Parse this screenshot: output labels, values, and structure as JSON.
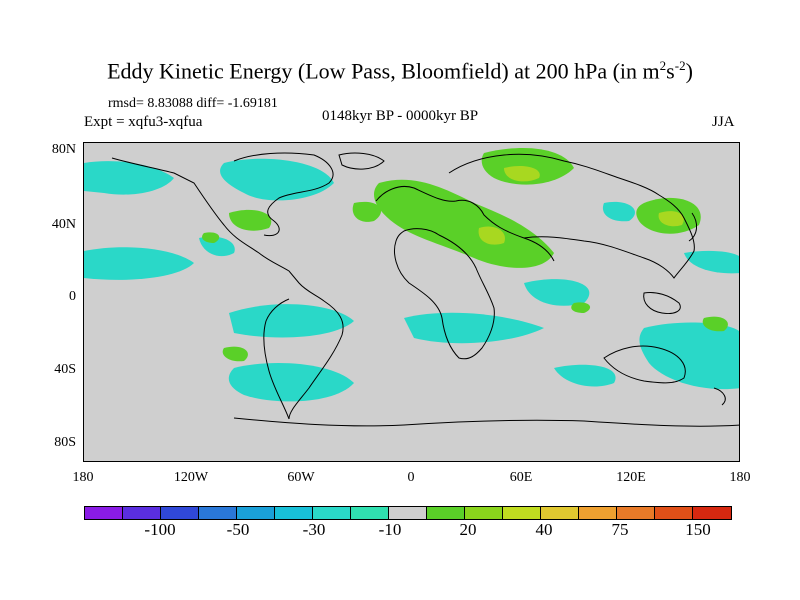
{
  "title": {
    "text": "Eddy Kinetic Energy (Low Pass, Bloomfield) at 200 hPa (in m",
    "sup1": "2",
    "mid": "s",
    "sup2": "-2",
    "end": ")"
  },
  "stats": "rmsd= 8.83088  diff= -1.69181",
  "experiment": "Expt = xqfu3-xqfua",
  "period": "0148kyr BP - 0000kyr BP",
  "season": "JJA",
  "lat_labels": [
    "80N",
    "40N",
    "0",
    "40S",
    "80S"
  ],
  "lon_labels": [
    "180",
    "120W",
    "60W",
    "0",
    "60E",
    "120E",
    "180"
  ],
  "colorbar": {
    "colors": [
      "#8a1be6",
      "#5a2ee0",
      "#3048d8",
      "#2a78d8",
      "#1aa0d8",
      "#18c0d8",
      "#2ad8c8",
      "#30e0b0",
      "#cfcfcf",
      "#5ad028",
      "#8ad41c",
      "#c0dc20",
      "#e0c830",
      "#eea030",
      "#e87a28",
      "#e05018",
      "#d62810"
    ],
    "labels": [
      "-100",
      "-50",
      "-30",
      "-10",
      "20",
      "40",
      "75",
      "150"
    ]
  },
  "colors": {
    "background": "#cfcfcf",
    "negative": "#2ad8c8",
    "positive": "#5ad028",
    "strong_positive": "#a8d820"
  }
}
